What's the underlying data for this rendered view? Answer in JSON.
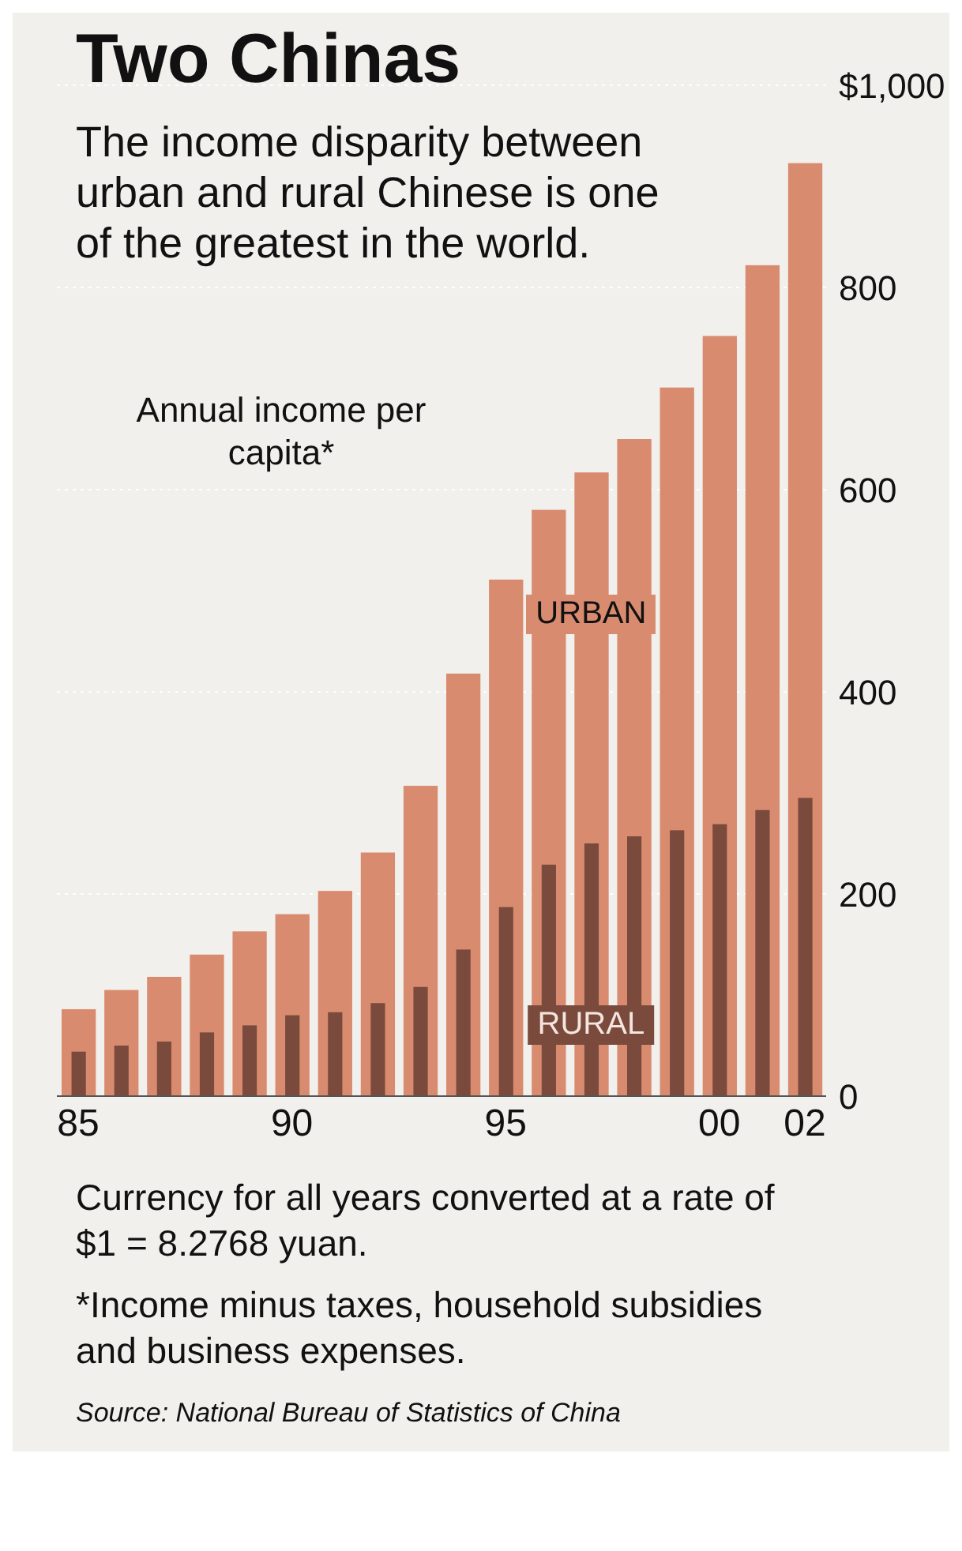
{
  "chart_data": {
    "type": "bar",
    "title": "Two Chinas",
    "subtitle": "The income disparity between urban and rural Chinese is one of the greatest in the world.",
    "ylabel": "Annual income per capita*",
    "categories": [
      "85",
      null,
      null,
      null,
      null,
      "90",
      null,
      null,
      null,
      null,
      "95",
      null,
      null,
      null,
      null,
      "00",
      null,
      "02"
    ],
    "series": [
      {
        "name": "URBAN",
        "color": "#d98b6f",
        "values": [
          86,
          105,
          118,
          140,
          163,
          180,
          203,
          241,
          307,
          418,
          511,
          580,
          617,
          650,
          701,
          752,
          822,
          923
        ]
      },
      {
        "name": "RURAL",
        "color": "#7a4a3c",
        "values": [
          44,
          50,
          54,
          63,
          70,
          80,
          83,
          92,
          108,
          145,
          187,
          229,
          250,
          257,
          263,
          269,
          283,
          295
        ]
      }
    ],
    "ylim": [
      0,
      1000
    ],
    "yticks": [
      0,
      200,
      400,
      600,
      800,
      {
        "value": 1000,
        "label": "$1,000"
      }
    ],
    "grid": "y",
    "annotations": [
      "Currency for all years converted at a rate of $1 = 8.2768 yuan.",
      "*Income minus taxes, household subsidies and business expenses.",
      "Source: National Bureau of Statistics of China"
    ]
  }
}
